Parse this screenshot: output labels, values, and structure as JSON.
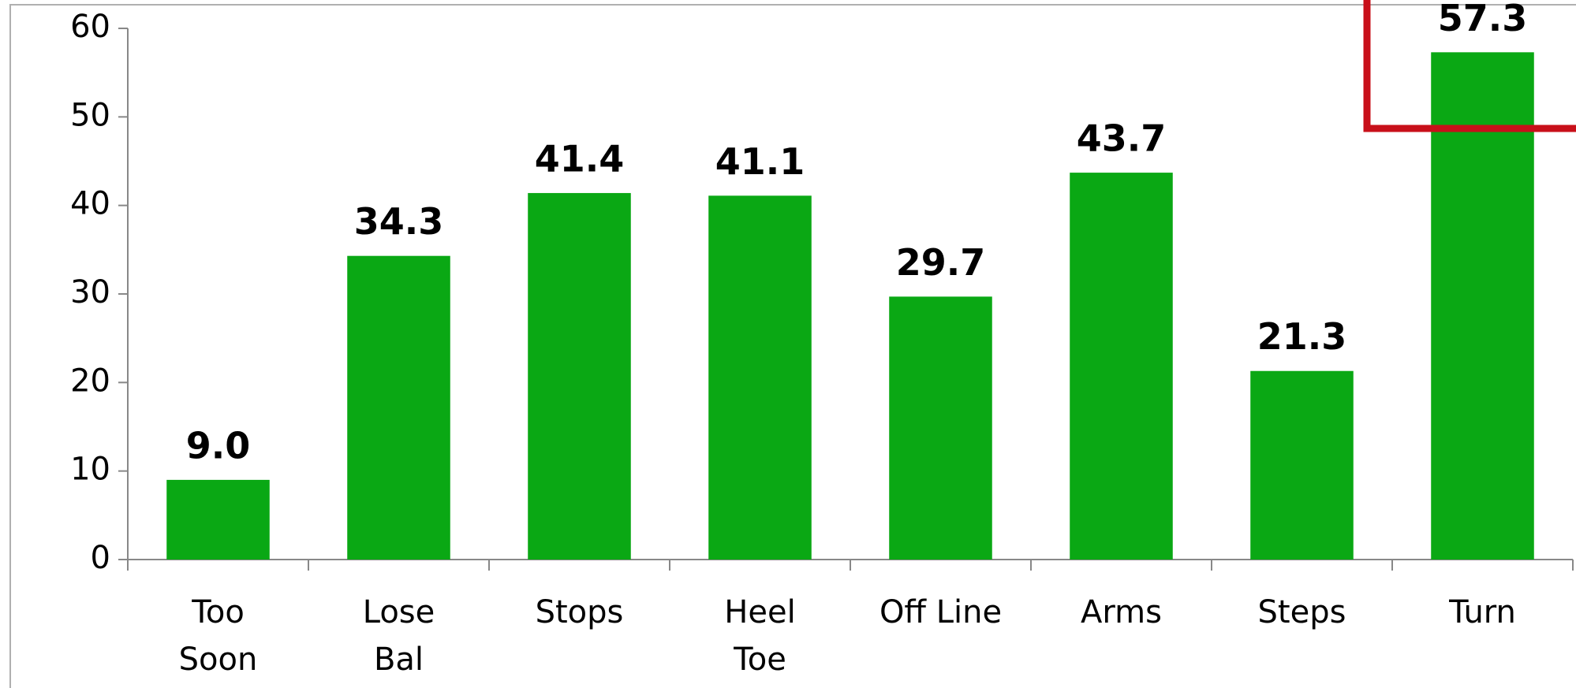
{
  "chart_data": {
    "type": "bar",
    "categories": [
      [
        "Too",
        "Soon"
      ],
      [
        "Lose",
        "Bal"
      ],
      [
        "Stops"
      ],
      [
        "Heel",
        "Toe"
      ],
      [
        "Off Line"
      ],
      [
        "Arms"
      ],
      [
        "Steps"
      ],
      [
        "Turn"
      ]
    ],
    "values": [
      9.0,
      34.3,
      41.4,
      41.1,
      29.7,
      43.7,
      21.3,
      57.3
    ],
    "value_labels": [
      "9.0",
      "34.3",
      "41.4",
      "41.1",
      "29.7",
      "43.7",
      "21.3",
      "57.3"
    ],
    "color": "#0aa814",
    "ylim": [
      0,
      60
    ],
    "yticks": [
      0,
      10,
      20,
      30,
      40,
      50,
      60
    ],
    "grid": false
  }
}
